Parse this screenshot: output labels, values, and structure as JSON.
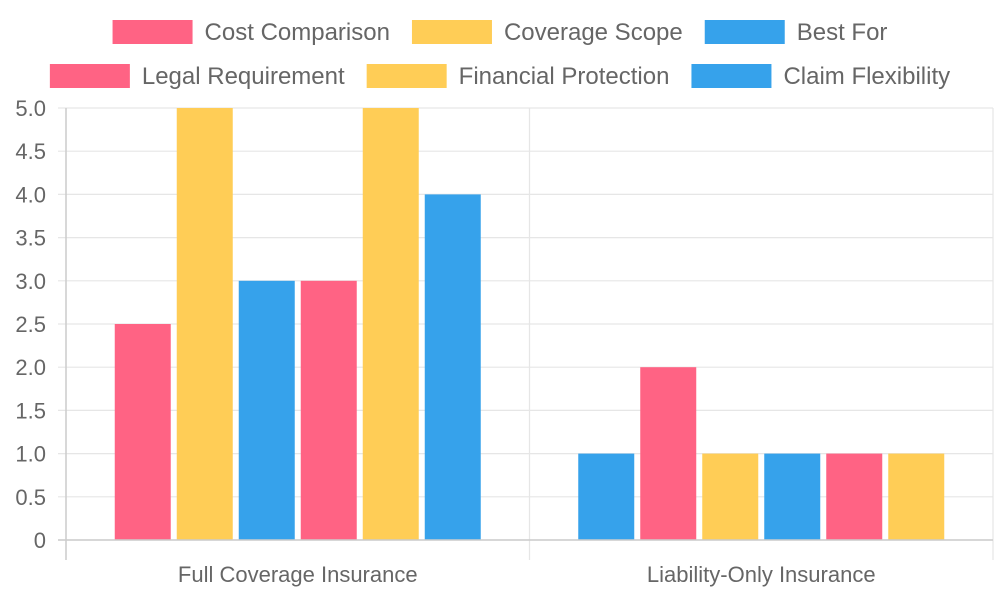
{
  "chart_data": {
    "type": "bar",
    "categories": [
      "Full Coverage Insurance",
      "Liability-Only Insurance"
    ],
    "series": [
      {
        "name": "Cost Comparison",
        "color": "#ff6384",
        "values": [
          2.5,
          2
        ]
      },
      {
        "name": "Coverage Scope",
        "color": "#ffcd56",
        "values": [
          5,
          1
        ]
      },
      {
        "name": "Best For",
        "color": "#36a2eb",
        "values": [
          3,
          1
        ]
      },
      {
        "name": "Legal Requirement",
        "color": "#ff6384",
        "values": [
          3,
          1
        ]
      },
      {
        "name": "Financial Protection",
        "color": "#ffcd56",
        "values": [
          5,
          1
        ]
      },
      {
        "name": "Claim Flexibility",
        "color": "#36a2eb",
        "values": [
          4,
          1
        ]
      }
    ],
    "ylim": [
      0,
      5
    ],
    "yticks": [
      "0",
      "0.5",
      "1.0",
      "1.5",
      "2.0",
      "2.5",
      "3.0",
      "3.5",
      "4.0",
      "4.5",
      "5.0"
    ],
    "ytick_values": [
      0,
      0.5,
      1,
      1.5,
      2,
      2.5,
      3,
      3.5,
      4,
      4.5,
      5
    ],
    "legend_position": "top",
    "grid": true,
    "title": "",
    "xlabel": "",
    "ylabel": ""
  }
}
